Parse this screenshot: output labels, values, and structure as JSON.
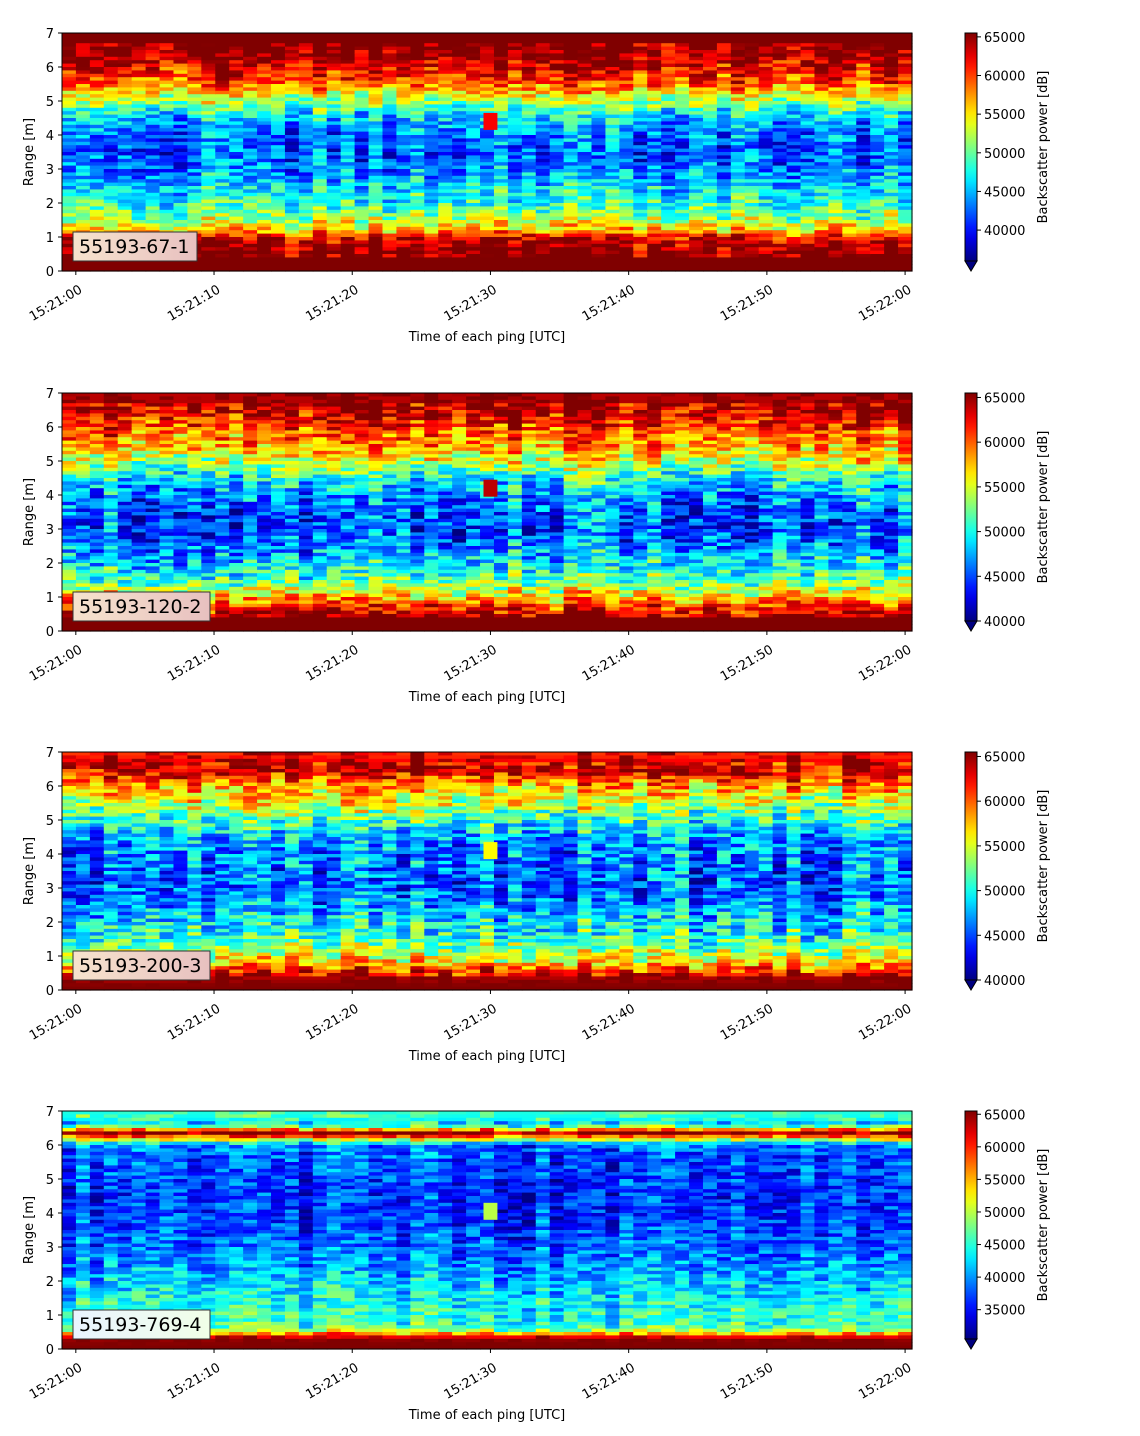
{
  "chart_data": [
    {
      "type": "heatmap",
      "label_box": "55193-67-1",
      "xlabel": "Time of each ping [UTC]",
      "ylabel": "Range [m]",
      "x_ticks": [
        "15:21:00",
        "15:21:10",
        "15:21:20",
        "15:21:30",
        "15:21:40",
        "15:21:50",
        "15:22:00"
      ],
      "xlim": [
        "15:20:59",
        "15:22:00.5"
      ],
      "ylim": [
        0,
        7
      ],
      "y_ticks": [
        0,
        1,
        2,
        3,
        4,
        5,
        6,
        7
      ],
      "colorbar": {
        "label": "Backscatter power [dB]",
        "vmin": 36000,
        "vmax": 65500,
        "ticks": [
          40000,
          45000,
          50000,
          55000,
          60000,
          65000
        ],
        "extend": "min",
        "colormap": "jet"
      },
      "range_profile": [
        {
          "range": 0.1,
          "value": 65500
        },
        {
          "range": 0.5,
          "value": 65500
        },
        {
          "range": 0.9,
          "value": 64000
        },
        {
          "range": 1.2,
          "value": 56000
        },
        {
          "range": 1.5,
          "value": 52000
        },
        {
          "range": 2.0,
          "value": 48000
        },
        {
          "range": 2.5,
          "value": 46000
        },
        {
          "range": 3.0,
          "value": 43500
        },
        {
          "range": 3.5,
          "value": 42000
        },
        {
          "range": 4.0,
          "value": 43000
        },
        {
          "range": 4.5,
          "value": 45500
        },
        {
          "range": 5.0,
          "value": 52000
        },
        {
          "range": 5.5,
          "value": 59000
        },
        {
          "range": 6.0,
          "value": 62500
        },
        {
          "range": 6.5,
          "value": 65500
        },
        {
          "range": 6.9,
          "value": 65500
        }
      ],
      "hotspot": {
        "time": "15:21:30",
        "range": 4.4,
        "value": 62000
      }
    },
    {
      "type": "heatmap",
      "label_box": "55193-120-2",
      "xlabel": "Time of each ping [UTC]",
      "ylabel": "Range [m]",
      "x_ticks": [
        "15:21:00",
        "15:21:10",
        "15:21:20",
        "15:21:30",
        "15:21:40",
        "15:21:50",
        "15:22:00"
      ],
      "xlim": [
        "15:20:59",
        "15:22:00.5"
      ],
      "ylim": [
        0,
        7
      ],
      "y_ticks": [
        0,
        1,
        2,
        3,
        4,
        5,
        6,
        7
      ],
      "colorbar": {
        "label": "Backscatter power [dB]",
        "vmin": 40000,
        "vmax": 65500,
        "ticks": [
          40000,
          45000,
          50000,
          55000,
          60000,
          65000
        ],
        "extend": "min",
        "colormap": "jet"
      },
      "range_profile": [
        {
          "range": 0.1,
          "value": 65500
        },
        {
          "range": 0.4,
          "value": 65500
        },
        {
          "range": 0.8,
          "value": 60000
        },
        {
          "range": 1.2,
          "value": 55000
        },
        {
          "range": 1.6,
          "value": 51000
        },
        {
          "range": 2.0,
          "value": 49000
        },
        {
          "range": 2.5,
          "value": 46500
        },
        {
          "range": 3.0,
          "value": 45000
        },
        {
          "range": 3.5,
          "value": 45500
        },
        {
          "range": 4.0,
          "value": 47000
        },
        {
          "range": 4.5,
          "value": 50000
        },
        {
          "range": 5.0,
          "value": 55000
        },
        {
          "range": 5.5,
          "value": 58500
        },
        {
          "range": 6.0,
          "value": 61000
        },
        {
          "range": 6.5,
          "value": 64500
        },
        {
          "range": 6.9,
          "value": 64000
        }
      ],
      "hotspot": {
        "time": "15:21:30",
        "range": 4.2,
        "value": 64000
      }
    },
    {
      "type": "heatmap",
      "label_box": "55193-200-3",
      "xlabel": "Time of each ping [UTC]",
      "ylabel": "Range [m]",
      "x_ticks": [
        "15:21:00",
        "15:21:10",
        "15:21:20",
        "15:21:30",
        "15:21:40",
        "15:21:50",
        "15:22:00"
      ],
      "xlim": [
        "15:20:59",
        "15:22:00.5"
      ],
      "ylim": [
        0,
        7
      ],
      "y_ticks": [
        0,
        1,
        2,
        3,
        4,
        5,
        6,
        7
      ],
      "colorbar": {
        "label": "Backscatter power [dB]",
        "vmin": 40000,
        "vmax": 65500,
        "ticks": [
          40000,
          45000,
          50000,
          55000,
          60000,
          65000
        ],
        "extend": "min",
        "colormap": "jet"
      },
      "range_profile": [
        {
          "range": 0.1,
          "value": 65500
        },
        {
          "range": 0.4,
          "value": 64000
        },
        {
          "range": 0.8,
          "value": 57000
        },
        {
          "range": 1.2,
          "value": 53000
        },
        {
          "range": 1.6,
          "value": 50500
        },
        {
          "range": 2.0,
          "value": 49000
        },
        {
          "range": 2.5,
          "value": 47000
        },
        {
          "range": 3.0,
          "value": 45500
        },
        {
          "range": 3.5,
          "value": 46000
        },
        {
          "range": 4.0,
          "value": 46500
        },
        {
          "range": 4.5,
          "value": 47500
        },
        {
          "range": 5.0,
          "value": 51000
        },
        {
          "range": 5.5,
          "value": 55000
        },
        {
          "range": 6.0,
          "value": 58000
        },
        {
          "range": 6.5,
          "value": 64500
        },
        {
          "range": 6.9,
          "value": 61000
        }
      ],
      "hotspot": {
        "time": "15:21:30",
        "range": 4.1,
        "value": 56000
      }
    },
    {
      "type": "heatmap",
      "label_box": "55193-769-4",
      "xlabel": "Time of each ping [UTC]",
      "ylabel": "Range [m]",
      "x_ticks": [
        "15:21:00",
        "15:21:10",
        "15:21:20",
        "15:21:30",
        "15:21:40",
        "15:21:50",
        "15:22:00"
      ],
      "xlim": [
        "15:20:59",
        "15:22:00.5"
      ],
      "ylim": [
        0,
        7
      ],
      "y_ticks": [
        0,
        1,
        2,
        3,
        4,
        5,
        6,
        7
      ],
      "colorbar": {
        "label": "Backscatter power [dB]",
        "vmin": 30500,
        "vmax": 65500,
        "ticks": [
          35000,
          40000,
          45000,
          50000,
          55000,
          60000,
          65000
        ],
        "extend": "min",
        "colormap": "jet"
      },
      "range_profile": [
        {
          "range": 0.1,
          "value": 65500
        },
        {
          "range": 0.3,
          "value": 64500
        },
        {
          "range": 0.6,
          "value": 46000
        },
        {
          "range": 1.0,
          "value": 45000
        },
        {
          "range": 1.5,
          "value": 43000
        },
        {
          "range": 2.0,
          "value": 41500
        },
        {
          "range": 2.5,
          "value": 39500
        },
        {
          "range": 3.0,
          "value": 38000
        },
        {
          "range": 3.5,
          "value": 37000
        },
        {
          "range": 4.0,
          "value": 36500
        },
        {
          "range": 4.5,
          "value": 36000
        },
        {
          "range": 5.0,
          "value": 36500
        },
        {
          "range": 5.5,
          "value": 37000
        },
        {
          "range": 6.0,
          "value": 38500
        },
        {
          "range": 6.35,
          "value": 65500
        },
        {
          "range": 6.6,
          "value": 42000
        },
        {
          "range": 6.9,
          "value": 44500
        }
      ],
      "hotspot": {
        "time": "15:21:30",
        "range": 4.05,
        "value": 50000
      }
    }
  ]
}
